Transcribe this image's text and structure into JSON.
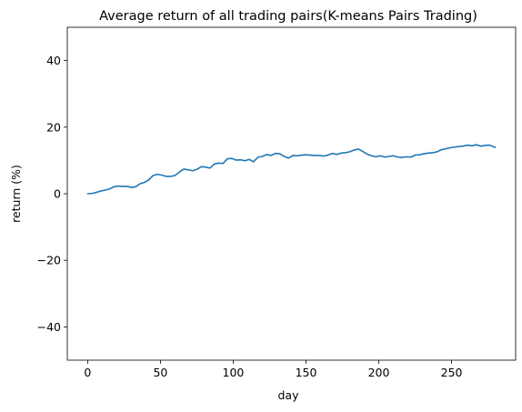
{
  "chart_data": {
    "type": "line",
    "title": "Average return of all trading pairs(K-means Pairs Trading)",
    "xlabel": "day",
    "ylabel": "return (%)",
    "xlim": [
      -14,
      294
    ],
    "ylim": [
      -50,
      50
    ],
    "xticks": [
      0,
      50,
      100,
      150,
      200,
      250
    ],
    "yticks": [
      -40,
      -20,
      0,
      20,
      40
    ],
    "ytick_labels": [
      "−40",
      "−20",
      "0",
      "20",
      "40"
    ],
    "grid": false,
    "legend": "none",
    "colors": {
      "line": "#1f77b4",
      "axes": "#000000",
      "background": "#ffffff"
    },
    "series": [
      {
        "points": [
          [
            0,
            0.0
          ],
          [
            3,
            0.1
          ],
          [
            6,
            0.4
          ],
          [
            9,
            0.8
          ],
          [
            12,
            1.1
          ],
          [
            15,
            1.4
          ],
          [
            18,
            2.1
          ],
          [
            21,
            2.3
          ],
          [
            24,
            2.2
          ],
          [
            27,
            2.2
          ],
          [
            30,
            1.9
          ],
          [
            33,
            2.1
          ],
          [
            36,
            3.0
          ],
          [
            39,
            3.4
          ],
          [
            42,
            4.2
          ],
          [
            45,
            5.5
          ],
          [
            48,
            5.8
          ],
          [
            51,
            5.6
          ],
          [
            54,
            5.2
          ],
          [
            57,
            5.2
          ],
          [
            60,
            5.5
          ],
          [
            63,
            6.5
          ],
          [
            66,
            7.4
          ],
          [
            69,
            7.2
          ],
          [
            72,
            6.9
          ],
          [
            75,
            7.3
          ],
          [
            78,
            8.1
          ],
          [
            81,
            8.0
          ],
          [
            84,
            7.7
          ],
          [
            87,
            8.9
          ],
          [
            90,
            9.2
          ],
          [
            93,
            9.1
          ],
          [
            96,
            10.5
          ],
          [
            99,
            10.6
          ],
          [
            102,
            10.1
          ],
          [
            105,
            10.2
          ],
          [
            108,
            9.9
          ],
          [
            111,
            10.3
          ],
          [
            114,
            9.6
          ],
          [
            117,
            11.0
          ],
          [
            120,
            11.2
          ],
          [
            123,
            11.8
          ],
          [
            126,
            11.5
          ],
          [
            129,
            12.1
          ],
          [
            132,
            12.0
          ],
          [
            135,
            11.2
          ],
          [
            138,
            10.7
          ],
          [
            141,
            11.5
          ],
          [
            144,
            11.4
          ],
          [
            147,
            11.6
          ],
          [
            150,
            11.7
          ],
          [
            153,
            11.6
          ],
          [
            156,
            11.5
          ],
          [
            159,
            11.5
          ],
          [
            162,
            11.3
          ],
          [
            165,
            11.6
          ],
          [
            168,
            12.1
          ],
          [
            171,
            11.8
          ],
          [
            174,
            12.2
          ],
          [
            177,
            12.3
          ],
          [
            180,
            12.6
          ],
          [
            183,
            13.1
          ],
          [
            186,
            13.4
          ],
          [
            189,
            12.7
          ],
          [
            192,
            11.9
          ],
          [
            195,
            11.4
          ],
          [
            198,
            11.1
          ],
          [
            201,
            11.4
          ],
          [
            204,
            11.0
          ],
          [
            207,
            11.2
          ],
          [
            210,
            11.4
          ],
          [
            213,
            11.0
          ],
          [
            216,
            10.9
          ],
          [
            219,
            11.1
          ],
          [
            222,
            11.0
          ],
          [
            225,
            11.6
          ],
          [
            228,
            11.7
          ],
          [
            231,
            12.0
          ],
          [
            234,
            12.2
          ],
          [
            237,
            12.3
          ],
          [
            240,
            12.6
          ],
          [
            243,
            13.2
          ],
          [
            246,
            13.5
          ],
          [
            249,
            13.8
          ],
          [
            252,
            14.0
          ],
          [
            255,
            14.2
          ],
          [
            258,
            14.3
          ],
          [
            261,
            14.6
          ],
          [
            264,
            14.4
          ],
          [
            267,
            14.7
          ],
          [
            270,
            14.3
          ],
          [
            273,
            14.5
          ],
          [
            276,
            14.6
          ],
          [
            280,
            13.9
          ]
        ]
      }
    ]
  }
}
